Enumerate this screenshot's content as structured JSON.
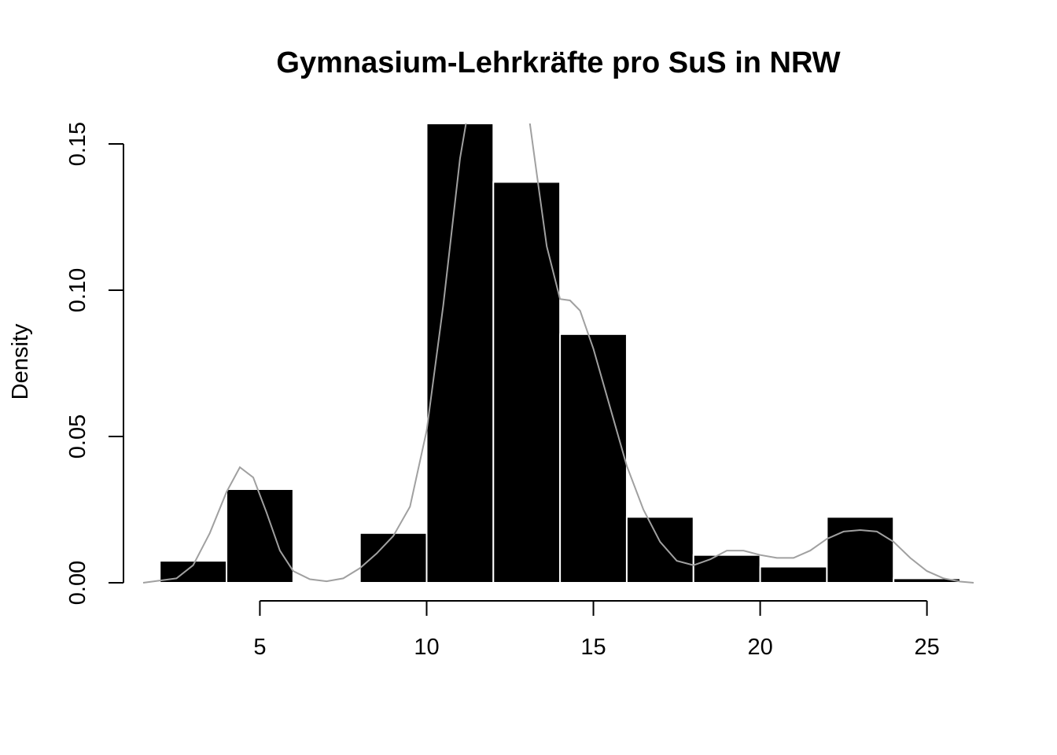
{
  "chart_data": {
    "type": "histogram",
    "title": "Gymnasium-Lehrkräfte pro SuS in NRW",
    "xlabel": "",
    "ylabel": "Density",
    "xlim": [
      1.5,
      26.4
    ],
    "ylim": [
      0,
      0.157
    ],
    "x_ticks": [
      5,
      10,
      15,
      20,
      25
    ],
    "x_tick_labels": [
      "5",
      "10",
      "15",
      "20",
      "25"
    ],
    "y_ticks": [
      0,
      0.05,
      0.1,
      0.15
    ],
    "y_tick_labels": [
      "0.00",
      "0.05",
      "0.10",
      "0.15"
    ],
    "bins": [
      {
        "from": 2,
        "to": 4,
        "density": 0.0075
      },
      {
        "from": 4,
        "to": 6,
        "density": 0.032
      },
      {
        "from": 6,
        "to": 8,
        "density": 0.0
      },
      {
        "from": 8,
        "to": 10,
        "density": 0.017
      },
      {
        "from": 10,
        "to": 12,
        "density": 0.157
      },
      {
        "from": 12,
        "to": 14,
        "density": 0.137
      },
      {
        "from": 14,
        "to": 16,
        "density": 0.085
      },
      {
        "from": 16,
        "to": 18,
        "density": 0.0225
      },
      {
        "from": 18,
        "to": 20,
        "density": 0.0095
      },
      {
        "from": 20,
        "to": 22,
        "density": 0.0055
      },
      {
        "from": 22,
        "to": 24,
        "density": 0.0225
      },
      {
        "from": 24,
        "to": 26,
        "density": 0.0015
      }
    ],
    "density_curve": {
      "x": [
        1.5,
        2.5,
        3.0,
        3.5,
        4.0,
        4.4,
        4.8,
        5.2,
        5.6,
        6.0,
        6.5,
        7.0,
        7.5,
        8.0,
        8.5,
        9.0,
        9.5,
        10.0,
        10.5,
        11.0,
        11.3,
        13.0,
        13.3,
        13.6,
        14.0,
        14.3,
        14.6,
        15.0,
        15.5,
        16.0,
        16.5,
        17.0,
        17.5,
        18.0,
        18.5,
        19.0,
        19.5,
        20.0,
        20.5,
        21.0,
        21.5,
        22.0,
        22.5,
        23.0,
        23.5,
        24.0,
        24.5,
        25.0,
        25.5,
        26.0,
        26.4
      ],
      "y": [
        0.0,
        0.0015,
        0.006,
        0.017,
        0.031,
        0.0395,
        0.036,
        0.024,
        0.011,
        0.004,
        0.0012,
        0.0005,
        0.0015,
        0.005,
        0.01,
        0.016,
        0.026,
        0.052,
        0.095,
        0.145,
        0.165,
        0.165,
        0.14,
        0.115,
        0.097,
        0.0965,
        0.093,
        0.08,
        0.06,
        0.04,
        0.025,
        0.014,
        0.0075,
        0.006,
        0.008,
        0.011,
        0.011,
        0.0095,
        0.0085,
        0.0085,
        0.011,
        0.015,
        0.0175,
        0.018,
        0.0175,
        0.014,
        0.0085,
        0.004,
        0.0015,
        0.0004,
        0.0
      ]
    }
  }
}
